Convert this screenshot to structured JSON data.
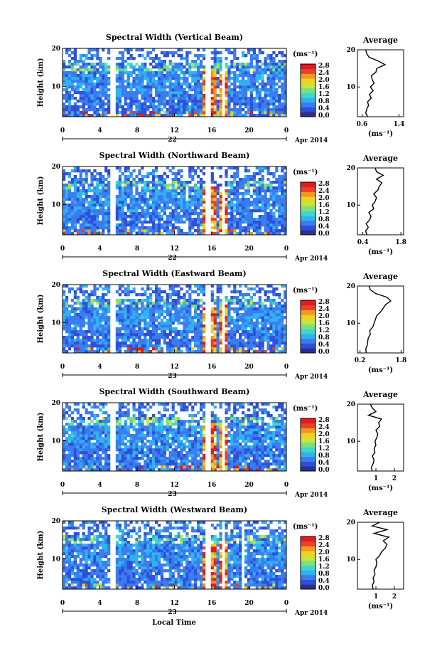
{
  "figure": {
    "x_axis_label": "Local Time",
    "height_label": "Height (km)",
    "date_suffix": "Apr 2014",
    "colorbar_unit": "(ms⁻¹)",
    "average_title": "Average",
    "average_unit": "(ms⁻¹)",
    "colormap": [
      "#2b2f8f",
      "#2f4fd8",
      "#3b7cf0",
      "#2fb3f0",
      "#3fd8c8",
      "#7fe07a",
      "#c8e53a",
      "#f0d020",
      "#f09a20",
      "#e8402a",
      "#e41a1c"
    ]
  },
  "chart_data": [
    {
      "type": "heatmap",
      "title": "Spectral Width (Vertical Beam)",
      "xlabel": "",
      "ylabel": "Height (km)",
      "x_ticks": [
        "0",
        "4",
        "8",
        "12",
        "16",
        "20",
        "0"
      ],
      "y_ticks": [
        "10",
        "20"
      ],
      "day_label": "22",
      "xlim": [
        0,
        24
      ],
      "ylim": [
        2,
        20
      ],
      "colorbar": {
        "label": "(ms⁻¹)",
        "ticks": [
          "2.8",
          "2.4",
          "2.0",
          "1.6",
          "1.2",
          "0.8",
          "0.4",
          "0.0"
        ]
      },
      "gaps_hours": [
        [
          5.2,
          5.6
        ],
        [
          15.3,
          15.8
        ],
        [
          17.2,
          17.4
        ]
      ],
      "hotspot_hours": [
        15.8,
        17.2
      ],
      "average_profile": {
        "title": "Average",
        "xlabel": "(ms⁻¹)",
        "x_ticks": [
          "0.6",
          "1.4"
        ],
        "xlim": [
          0.5,
          1.5
        ],
        "y_ticks": [
          "10",
          "20"
        ],
        "height_km": [
          2,
          3,
          4,
          5,
          6,
          7,
          8,
          9,
          10,
          11,
          12,
          13,
          14,
          15,
          16,
          17,
          18,
          19,
          20
        ],
        "width_ms": [
          0.72,
          0.68,
          0.7,
          0.74,
          0.72,
          0.8,
          0.76,
          0.84,
          0.78,
          0.86,
          0.82,
          0.8,
          0.9,
          0.92,
          1.1,
          0.95,
          0.75,
          0.7,
          0.68
        ]
      }
    },
    {
      "type": "heatmap",
      "title": "Spectral Width (Northward Beam)",
      "xlabel": "",
      "ylabel": "Height (km)",
      "x_ticks": [
        "0",
        "4",
        "8",
        "12",
        "16",
        "20",
        "0"
      ],
      "y_ticks": [
        "10",
        "20"
      ],
      "day_label": "22",
      "xlim": [
        0,
        24
      ],
      "ylim": [
        2,
        20
      ],
      "colorbar": {
        "label": "(ms⁻¹)",
        "ticks": [
          "2.8",
          "2.4",
          "2.0",
          "1.6",
          "1.2",
          "0.8",
          "0.4",
          "0.0"
        ]
      },
      "gaps_hours": [
        [
          5.2,
          5.6
        ],
        [
          12.8,
          13.0
        ],
        [
          15.3,
          15.8
        ],
        [
          17.2,
          17.4
        ]
      ],
      "hotspot_hours": [
        15.8,
        17.2
      ],
      "average_profile": {
        "title": "Average",
        "xlabel": "(ms⁻¹)",
        "x_ticks": [
          "0.4",
          "1.8"
        ],
        "xlim": [
          0.2,
          1.9
        ],
        "y_ticks": [
          "10",
          "20"
        ],
        "height_km": [
          2,
          3,
          4,
          5,
          6,
          7,
          8,
          9,
          10,
          11,
          12,
          13,
          14,
          15,
          16,
          17,
          18,
          19,
          20
        ],
        "width_ms": [
          0.55,
          0.5,
          0.6,
          0.52,
          0.65,
          0.7,
          0.62,
          0.8,
          0.75,
          0.85,
          0.9,
          0.8,
          0.95,
          1.0,
          1.1,
          0.9,
          1.15,
          0.9,
          0.85
        ]
      }
    },
    {
      "type": "heatmap",
      "title": "Spectral Width (Eastward Beam)",
      "xlabel": "",
      "ylabel": "Height (km)",
      "x_ticks": [
        "0",
        "4",
        "8",
        "12",
        "16",
        "20",
        "0"
      ],
      "y_ticks": [
        "10",
        "20"
      ],
      "day_label": "23",
      "xlim": [
        0,
        24
      ],
      "ylim": [
        2,
        20
      ],
      "colorbar": {
        "label": "(ms⁻¹)",
        "ticks": [
          "2.8",
          "2.4",
          "2.0",
          "1.6",
          "1.2",
          "0.8",
          "0.4",
          "0.0"
        ]
      },
      "gaps_hours": [
        [
          5.2,
          5.6
        ],
        [
          15.3,
          15.8
        ],
        [
          17.2,
          17.4
        ]
      ],
      "hotspot_hours": [
        15.8,
        17.2
      ],
      "average_profile": {
        "title": "Average",
        "xlabel": "(ms⁻¹)",
        "x_ticks": [
          "0.2",
          "1.8"
        ],
        "xlim": [
          0.1,
          1.9
        ],
        "y_ticks": [
          "10",
          "20"
        ],
        "height_km": [
          2,
          3,
          4,
          5,
          6,
          7,
          8,
          9,
          10,
          11,
          12,
          13,
          14,
          15,
          16,
          17,
          18,
          19,
          20
        ],
        "width_ms": [
          0.45,
          0.42,
          0.48,
          0.5,
          0.52,
          0.6,
          0.58,
          0.7,
          0.75,
          0.8,
          0.85,
          1.0,
          1.1,
          1.2,
          1.4,
          1.25,
          0.8,
          0.6,
          0.55
        ]
      }
    },
    {
      "type": "heatmap",
      "title": "Spectral Width (Southward Beam)",
      "xlabel": "",
      "ylabel": "Height (km)",
      "x_ticks": [
        "0",
        "4",
        "8",
        "12",
        "16",
        "20",
        "0"
      ],
      "y_ticks": [
        "10",
        "20"
      ],
      "day_label": "23",
      "xlim": [
        0,
        24
      ],
      "ylim": [
        2,
        20
      ],
      "colorbar": {
        "label": "(ms⁻¹)",
        "ticks": [
          "2.8",
          "2.4",
          "2.0",
          "1.6",
          "1.2",
          "0.8",
          "0.4",
          "0.0"
        ]
      },
      "gaps_hours": [
        [
          5.2,
          5.6
        ],
        [
          15.3,
          15.8
        ],
        [
          17.2,
          17.4
        ]
      ],
      "hotspot_hours": [
        15.8,
        17.2
      ],
      "average_profile": {
        "title": "Average",
        "xlabel": "(ms⁻¹)",
        "x_ticks": [
          "1",
          "2"
        ],
        "xlim": [
          0,
          2.5
        ],
        "y_ticks": [
          "10",
          "20"
        ],
        "height_km": [
          2,
          3,
          4,
          5,
          6,
          7,
          8,
          9,
          10,
          11,
          12,
          13,
          14,
          15,
          16,
          17,
          18,
          19,
          20
        ],
        "width_ms": [
          0.8,
          0.75,
          0.85,
          0.9,
          0.8,
          0.95,
          0.9,
          1.0,
          0.95,
          1.05,
          1.1,
          1.0,
          1.2,
          1.15,
          1.3,
          0.6,
          1.0,
          0.8,
          0.7
        ]
      }
    },
    {
      "type": "heatmap",
      "title": "Spectral Width (Westward Beam)",
      "xlabel": "Local Time",
      "ylabel": "Height (km)",
      "x_ticks": [
        "0",
        "4",
        "8",
        "12",
        "16",
        "20",
        "0"
      ],
      "y_ticks": [
        "10",
        "20"
      ],
      "day_label": "23",
      "xlim": [
        0,
        24
      ],
      "ylim": [
        2,
        20
      ],
      "colorbar": {
        "label": "(ms⁻¹)",
        "ticks": [
          "2.8",
          "2.4",
          "2.0",
          "1.6",
          "1.2",
          "0.8",
          "0.4",
          "0.0"
        ]
      },
      "gaps_hours": [
        [
          5.2,
          5.6
        ],
        [
          15.3,
          15.8
        ],
        [
          17.2,
          17.4
        ],
        [
          19.2,
          19.4
        ]
      ],
      "hotspot_hours": [
        15.8,
        17.2
      ],
      "average_profile": {
        "title": "Average",
        "xlabel": "(ms⁻¹)",
        "x_ticks": [
          "1",
          "2"
        ],
        "xlim": [
          0,
          2.5
        ],
        "y_ticks": [
          "10",
          "20"
        ],
        "height_km": [
          2,
          3,
          4,
          5,
          6,
          7,
          8,
          9,
          10,
          11,
          12,
          13,
          14,
          15,
          16,
          17,
          18,
          19,
          20
        ],
        "width_ms": [
          0.85,
          0.8,
          0.9,
          0.85,
          0.95,
          0.9,
          1.0,
          1.05,
          1.0,
          1.2,
          1.3,
          1.5,
          1.6,
          1.4,
          1.7,
          0.9,
          1.6,
          0.8,
          1.2
        ]
      }
    }
  ]
}
